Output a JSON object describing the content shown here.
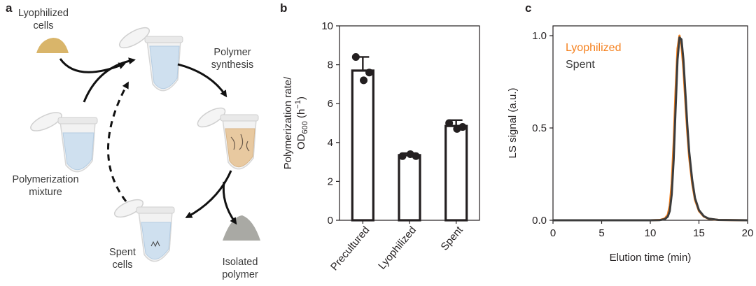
{
  "figure": {
    "panels": [
      "a",
      "b",
      "c"
    ]
  },
  "schematic": {
    "labels": {
      "lyophilized_cells_1": "Lyophilized",
      "lyophilized_cells_2": "cells",
      "polymer_synthesis_1": "Polymer",
      "polymer_synthesis_2": "synthesis",
      "polymerization_mixture_1": "Polymerization",
      "polymerization_mixture_2": "mixture",
      "spent_cells_1": "Spent",
      "spent_cells_2": "cells",
      "isolated_polymer_1": "Isolated",
      "isolated_polymer_2": "polymer"
    },
    "colors": {
      "lyophilized_powder": "#d9b56a",
      "mixture_liquid": "#cfe0ef",
      "polymer_liquid": "#e8c9a0",
      "isolated_polymer": "#a9a9a4",
      "tube": "#e4e4e4"
    }
  },
  "chart_data": [
    {
      "panel": "b",
      "type": "bar",
      "categories": [
        "Precultured",
        "Lyophilized",
        "Spent"
      ],
      "values": [
        7.7,
        3.35,
        4.85
      ],
      "errors": [
        0.7,
        0.1,
        0.3
      ],
      "points": [
        [
          8.4,
          7.2,
          7.6
        ],
        [
          3.3,
          3.4,
          3.3
        ],
        [
          5.0,
          4.7,
          4.8
        ]
      ],
      "ylabel_line1": "Polymerization rate/",
      "ylabel_line2": "OD",
      "ylabel_sub": "600",
      "ylabel_unit": " (h",
      "ylabel_sup": "−1",
      "ylabel_close": ")",
      "ylim": [
        0,
        10
      ],
      "yticks": [
        "0",
        "2",
        "4",
        "6",
        "8",
        "10"
      ],
      "grid": false
    },
    {
      "panel": "c",
      "type": "line",
      "xlabel": "Elution time (min)",
      "ylabel": "LS signal (a.u.)",
      "xlim": [
        0,
        20
      ],
      "ylim": [
        0,
        1.0
      ],
      "xticks": [
        "0",
        "5",
        "10",
        "15",
        "20"
      ],
      "yticks": [
        "0.0",
        "0.5",
        "1.0"
      ],
      "legend_position": "top-left",
      "grid": false,
      "series": [
        {
          "name": "Lyophilized",
          "color": "#f58220",
          "x": [
            0,
            5,
            10,
            11,
            11.5,
            11.8,
            12.0,
            12.2,
            12.4,
            12.6,
            12.8,
            13.0,
            13.2,
            13.4,
            13.6,
            13.8,
            14.0,
            14.3,
            14.6,
            15.0,
            15.5,
            16.0,
            17,
            20
          ],
          "y": [
            0,
            0,
            0,
            0.002,
            0.01,
            0.03,
            0.08,
            0.2,
            0.42,
            0.7,
            0.93,
            1.0,
            0.95,
            0.82,
            0.65,
            0.48,
            0.34,
            0.2,
            0.11,
            0.05,
            0.02,
            0.008,
            0.002,
            0
          ]
        },
        {
          "name": "Spent",
          "color": "#3c3c3c",
          "x": [
            0,
            5,
            10,
            11,
            11.5,
            11.8,
            12.0,
            12.2,
            12.4,
            12.6,
            12.8,
            13.0,
            13.2,
            13.4,
            13.6,
            13.8,
            14.0,
            14.3,
            14.6,
            15.0,
            15.5,
            16.0,
            17,
            20
          ],
          "y": [
            0,
            0,
            0,
            0.001,
            0.006,
            0.02,
            0.05,
            0.14,
            0.33,
            0.6,
            0.87,
            0.99,
            0.98,
            0.87,
            0.7,
            0.52,
            0.37,
            0.22,
            0.12,
            0.055,
            0.022,
            0.009,
            0.002,
            0
          ]
        }
      ]
    }
  ]
}
